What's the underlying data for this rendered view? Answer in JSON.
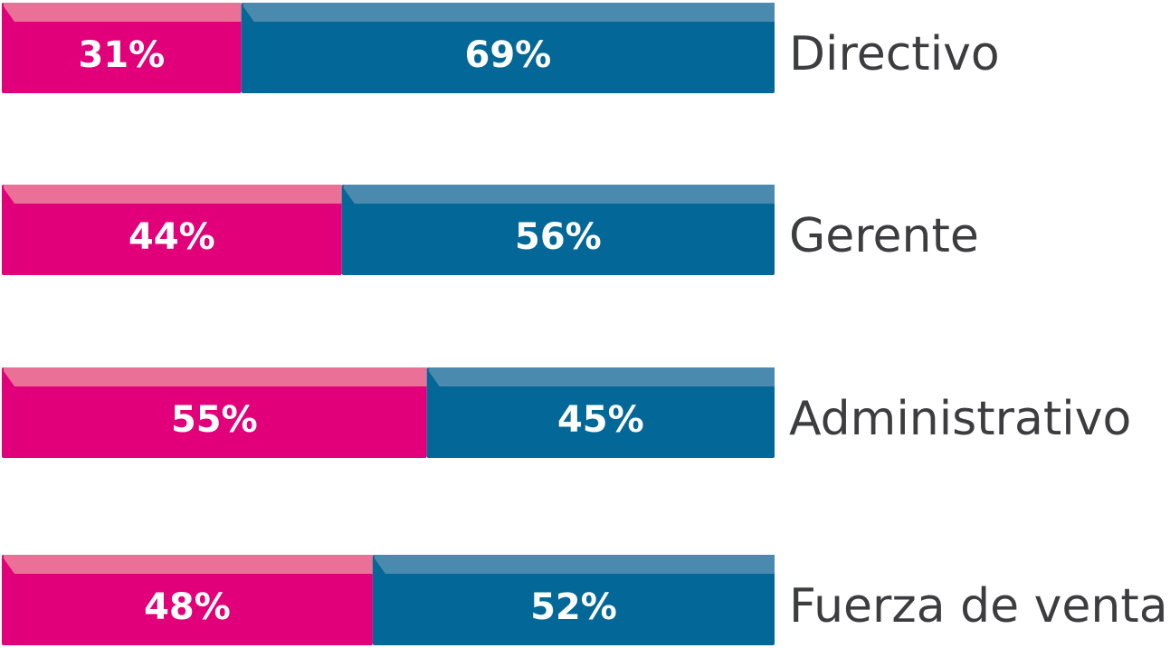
{
  "chart_data": {
    "type": "bar",
    "orientation": "horizontal",
    "stacked": true,
    "normalized": true,
    "categories": [
      "Directivo",
      "Gerente",
      "Administrativo",
      "Fuerza de ventas"
    ],
    "series": [
      {
        "values": [
          31,
          44,
          55,
          48
        ],
        "labels": [
          "31%",
          "44%",
          "55%",
          "48%"
        ],
        "color": "#e2007a",
        "highlight": "#ea7098"
      },
      {
        "values": [
          69,
          56,
          45,
          52
        ],
        "labels": [
          "69%",
          "56%",
          "45%",
          "52%"
        ],
        "color": "#036897",
        "highlight": "#4b8aaf"
      }
    ],
    "xlim": [
      0,
      100
    ],
    "grid": false,
    "legend": "none"
  }
}
